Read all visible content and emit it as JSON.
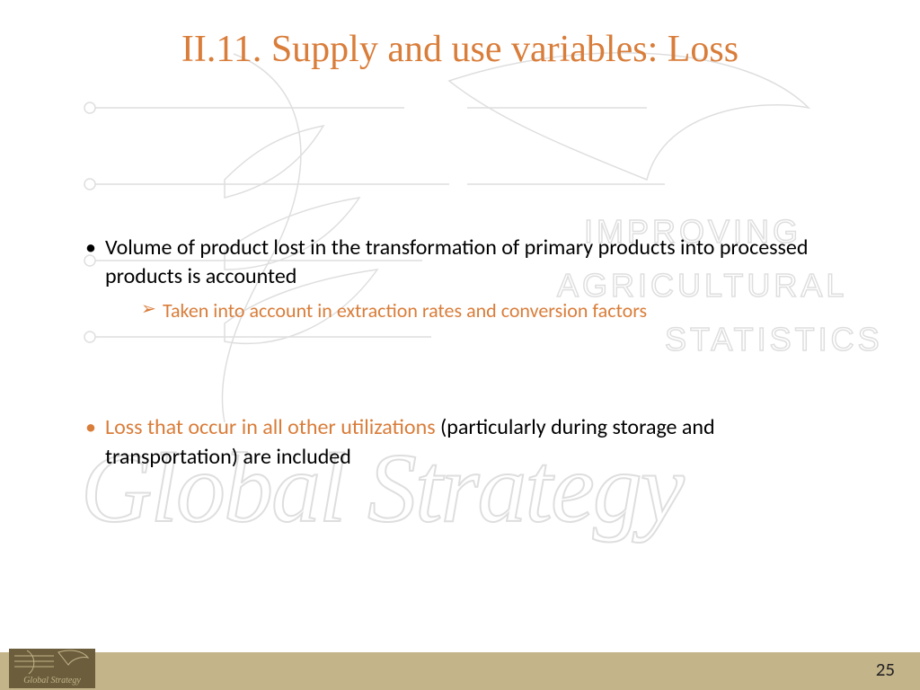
{
  "slide": {
    "title": "II.11. Supply and use variables: Loss",
    "title_color": "#d97d3a",
    "title_fontsize": 42,
    "bullets": [
      {
        "marker_color": "#000000",
        "parts": [
          {
            "text": "Volume of product lost in the transformation of primary products into processed products is accounted",
            "color": "#000000"
          }
        ],
        "sub": [
          {
            "marker_color": "#d97d3a",
            "text": "Taken into account in extraction rates and conversion factors",
            "color": "#d97d3a"
          }
        ]
      },
      {
        "marker_color": "#d97d3a",
        "parts": [
          {
            "text": "Loss that occur in all other utilizations ",
            "color": "#d97d3a"
          },
          {
            "text": "(particularly during storage and transportation) are included",
            "color": "#000000"
          }
        ],
        "sub": []
      }
    ],
    "bullet_fontsize": 24,
    "sub_fontsize": 22
  },
  "watermark": {
    "line1": "IMPROVING",
    "line2": "AGRICULTURAL",
    "line3": "STATISTICS",
    "brand": "Global Strategy",
    "stroke_color": "#808080"
  },
  "footer": {
    "bar_color": "#c4b48a",
    "logo_bg": "#6c5e3c",
    "logo_text1": "Global Strategy",
    "page_number": "25",
    "page_fontsize": 21
  }
}
